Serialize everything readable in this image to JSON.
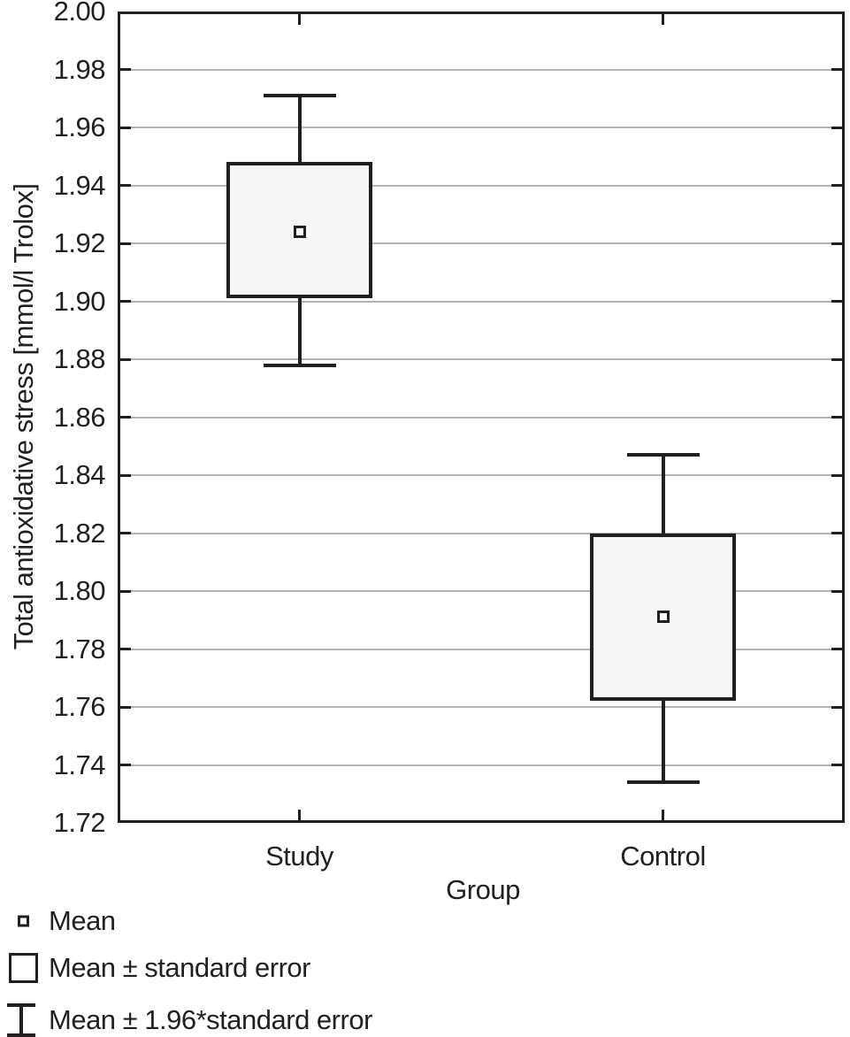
{
  "chart_data": {
    "type": "boxplot",
    "title": "",
    "xlabel": "Group",
    "ylabel": "Total antioxidative stress [mmol/l Trolox]",
    "ylim": [
      1.72,
      2.0
    ],
    "ytick_step": 0.02,
    "ytick_labels": [
      "2.00",
      "1.98",
      "1.96",
      "1.94",
      "1.92",
      "1.90",
      "1.88",
      "1.86",
      "1.84",
      "1.82",
      "1.80",
      "1.78",
      "1.76",
      "1.74",
      "1.72"
    ],
    "categories": [
      "Study",
      "Control"
    ],
    "series": [
      {
        "name": "Study",
        "mean": 1.924,
        "se_low": 1.901,
        "se_high": 1.948,
        "ci_low": 1.878,
        "ci_high": 1.971
      },
      {
        "name": "Control",
        "mean": 1.791,
        "se_low": 1.762,
        "se_high": 1.82,
        "ci_low": 1.734,
        "ci_high": 1.847
      }
    ],
    "legend": [
      {
        "marker": "mean-square",
        "label": "Mean"
      },
      {
        "marker": "se-box",
        "label": "Mean ± standard error"
      },
      {
        "marker": "ci-whisker",
        "label": "Mean ± 1.96*standard error"
      }
    ],
    "grid": true,
    "legend_position": "bottom-left",
    "colors": {
      "stroke": "#231f20",
      "grid": "#b3b3b3",
      "box_fill": "#f7f7f7",
      "background": "#ffffff"
    }
  }
}
